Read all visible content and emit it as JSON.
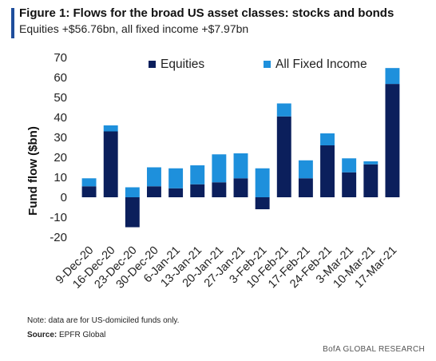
{
  "header": {
    "title": "Figure 1: Flows for the broad US asset classes: stocks and bonds",
    "subtitle": "Equities +$56.76bn, all fixed income +$7.97bn"
  },
  "footer": {
    "note": "Note: data are for US-domiciled funds only.",
    "source_label": "Source:",
    "source_value": "EPFR Global",
    "credit": "BofA GLOBAL RESEARCH"
  },
  "colors": {
    "accent": "#1f4e9c",
    "equities": "#0b1f5c",
    "fixed_income": "#1e90dc"
  },
  "chart_data": {
    "type": "bar",
    "stacked": true,
    "categories": [
      "9-Dec-20",
      "16-Dec-20",
      "23-Dec-20",
      "30-Dec-20",
      "6-Jan-21",
      "13-Jan-21",
      "20-Jan-21",
      "27-Jan-21",
      "3-Feb-21",
      "10-Feb-21",
      "17-Feb-21",
      "24-Feb-21",
      "3-Mar-21",
      "10-Mar-21",
      "17-Mar-21"
    ],
    "series": [
      {
        "name": "Equities",
        "values": [
          5.5,
          33,
          -15,
          5.5,
          4.5,
          6.5,
          7.5,
          9.5,
          -6,
          40.5,
          9.5,
          26,
          12.5,
          16.5,
          56.76
        ]
      },
      {
        "name": "All Fixed Income",
        "values": [
          4,
          3,
          5,
          9.5,
          10,
          9.5,
          14,
          12.5,
          14.5,
          6.5,
          9,
          6,
          7,
          1.5,
          7.97
        ]
      }
    ],
    "ylabel": "Fund flow ($bn)",
    "ylim": [
      -20,
      70
    ],
    "yticks": [
      -20,
      -10,
      0,
      10,
      20,
      30,
      40,
      50,
      60,
      70
    ],
    "legend": "top-inside",
    "grid": false
  }
}
